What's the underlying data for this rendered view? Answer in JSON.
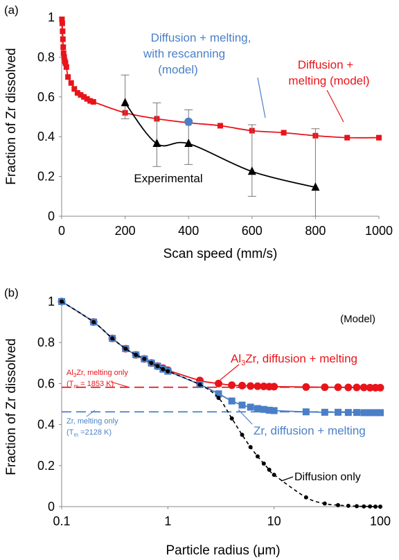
{
  "chart_data": [
    {
      "panel_label": "(a)",
      "type": "line",
      "xlabel": "Scan speed (mm/s)",
      "ylabel": "Fraction of Zr dissolved",
      "xlim": [
        0,
        1000
      ],
      "ylim": [
        0,
        1
      ],
      "xscale": "linear",
      "xticks": [
        "0",
        "200",
        "400",
        "600",
        "800",
        "1000"
      ],
      "yticks": [
        "0",
        "0.2",
        "0.4",
        "0.6",
        "0.8",
        "1"
      ],
      "grid": false,
      "series": [
        {
          "name": "Diffusion + melting (model)",
          "color": "#e8141a",
          "marker": "square",
          "x": [
            1,
            2,
            3,
            4,
            5,
            6,
            8,
            10,
            12,
            15,
            20,
            30,
            40,
            50,
            60,
            70,
            80,
            90,
            100,
            200,
            300,
            400,
            500,
            600,
            700,
            800,
            900,
            1000
          ],
          "y": [
            0.99,
            0.97,
            0.93,
            0.89,
            0.85,
            0.82,
            0.8,
            0.78,
            0.77,
            0.75,
            0.7,
            0.67,
            0.64,
            0.62,
            0.61,
            0.6,
            0.59,
            0.58,
            0.575,
            0.52,
            0.49,
            0.47,
            0.455,
            0.43,
            0.42,
            0.405,
            0.395,
            0.395
          ]
        },
        {
          "name": "Experimental",
          "color": "#000000",
          "marker": "triangle",
          "x": [
            200,
            300,
            400,
            600,
            800
          ],
          "y": [
            0.57,
            0.365,
            0.365,
            0.225,
            0.145
          ],
          "yerr_low": [
            0.49,
            0.25,
            0.26,
            0.1,
            0.0
          ],
          "yerr_high": [
            0.71,
            0.57,
            0.535,
            0.46,
            0.44
          ]
        },
        {
          "name": "Diffusion + melting, with rescanning (model)",
          "color": "#4a7fc8",
          "marker": "circle",
          "x": [
            400
          ],
          "y": [
            0.475
          ]
        }
      ],
      "annotations": [
        {
          "lines": [
            "Diffusion + melting,",
            "with rescanning",
            "(model)"
          ],
          "color": "#4a7fc8"
        },
        {
          "lines": [
            "Diffusion +",
            "melting (model)"
          ],
          "color": "#e8141a"
        },
        {
          "lines": [
            "Experimental"
          ],
          "color": "#000000"
        }
      ]
    },
    {
      "panel_label": "(b)",
      "type": "line",
      "xlabel": "Particle radius (μm)",
      "ylabel": "Fraction of Zr dissolved",
      "xlim": [
        0.1,
        100
      ],
      "ylim": [
        0,
        1
      ],
      "xscale": "log",
      "xticks": [
        "0.1",
        "1",
        "10",
        "100"
      ],
      "yticks": [
        "0",
        "0.2",
        "0.4",
        "0.6",
        "0.8",
        "1"
      ],
      "grid": false,
      "corner_label": "(Model)",
      "series": [
        {
          "name": "Al3Zr, diffusion + melting",
          "color": "#e8141a",
          "marker": "circle",
          "x": [
            0.1,
            0.2,
            0.3,
            0.4,
            0.5,
            0.6,
            0.7,
            0.8,
            0.9,
            1,
            2,
            3,
            4,
            5,
            6,
            7,
            8,
            9,
            10,
            20,
            30,
            40,
            50,
            60,
            70,
            80,
            90,
            100
          ],
          "y": [
            1.0,
            0.9,
            0.82,
            0.77,
            0.74,
            0.72,
            0.7,
            0.685,
            0.675,
            0.665,
            0.615,
            0.6,
            0.592,
            0.59,
            0.588,
            0.587,
            0.586,
            0.585,
            0.585,
            0.583,
            0.582,
            0.582,
            0.581,
            0.581,
            0.581,
            0.58,
            0.58,
            0.58
          ]
        },
        {
          "name": "Zr, diffusion + melting",
          "color": "#4a7fc8",
          "marker": "square",
          "x": [
            0.1,
            0.2,
            0.3,
            0.4,
            0.5,
            0.6,
            0.7,
            0.8,
            0.9,
            1,
            2,
            3,
            4,
            5,
            6,
            7,
            8,
            9,
            10,
            20,
            30,
            40,
            50,
            60,
            70,
            80,
            90,
            100
          ],
          "y": [
            1.0,
            0.9,
            0.82,
            0.77,
            0.74,
            0.72,
            0.7,
            0.685,
            0.67,
            0.66,
            0.595,
            0.55,
            0.515,
            0.495,
            0.485,
            0.478,
            0.474,
            0.47,
            0.468,
            0.462,
            0.46,
            0.46,
            0.459,
            0.459,
            0.458,
            0.458,
            0.458,
            0.458
          ]
        },
        {
          "name": "Diffusion only",
          "color": "#000000",
          "marker": "circle",
          "x": [
            0.1,
            0.2,
            0.3,
            0.4,
            0.5,
            0.6,
            0.7,
            0.8,
            0.9,
            1,
            2,
            3,
            4,
            5,
            6,
            7,
            8,
            9,
            10,
            20,
            30,
            40,
            50,
            60,
            70,
            80,
            90,
            100
          ],
          "y": [
            1.0,
            0.9,
            0.82,
            0.77,
            0.74,
            0.72,
            0.7,
            0.685,
            0.67,
            0.66,
            0.595,
            0.53,
            0.43,
            0.35,
            0.29,
            0.245,
            0.21,
            0.18,
            0.155,
            0.045,
            0.015,
            0.007,
            0.004,
            0.002,
            0.001,
            0.001,
            0.0,
            0.0
          ]
        },
        {
          "name": "Al3Zr, melting only (Tm = 1853 K)",
          "color": "#e8141a",
          "style": "dashed",
          "y": 0.582
        },
        {
          "name": "Zr, melting only (Tm = 2128 K)",
          "color": "#4a7fc8",
          "style": "dashed",
          "y": 0.462
        }
      ]
    }
  ]
}
